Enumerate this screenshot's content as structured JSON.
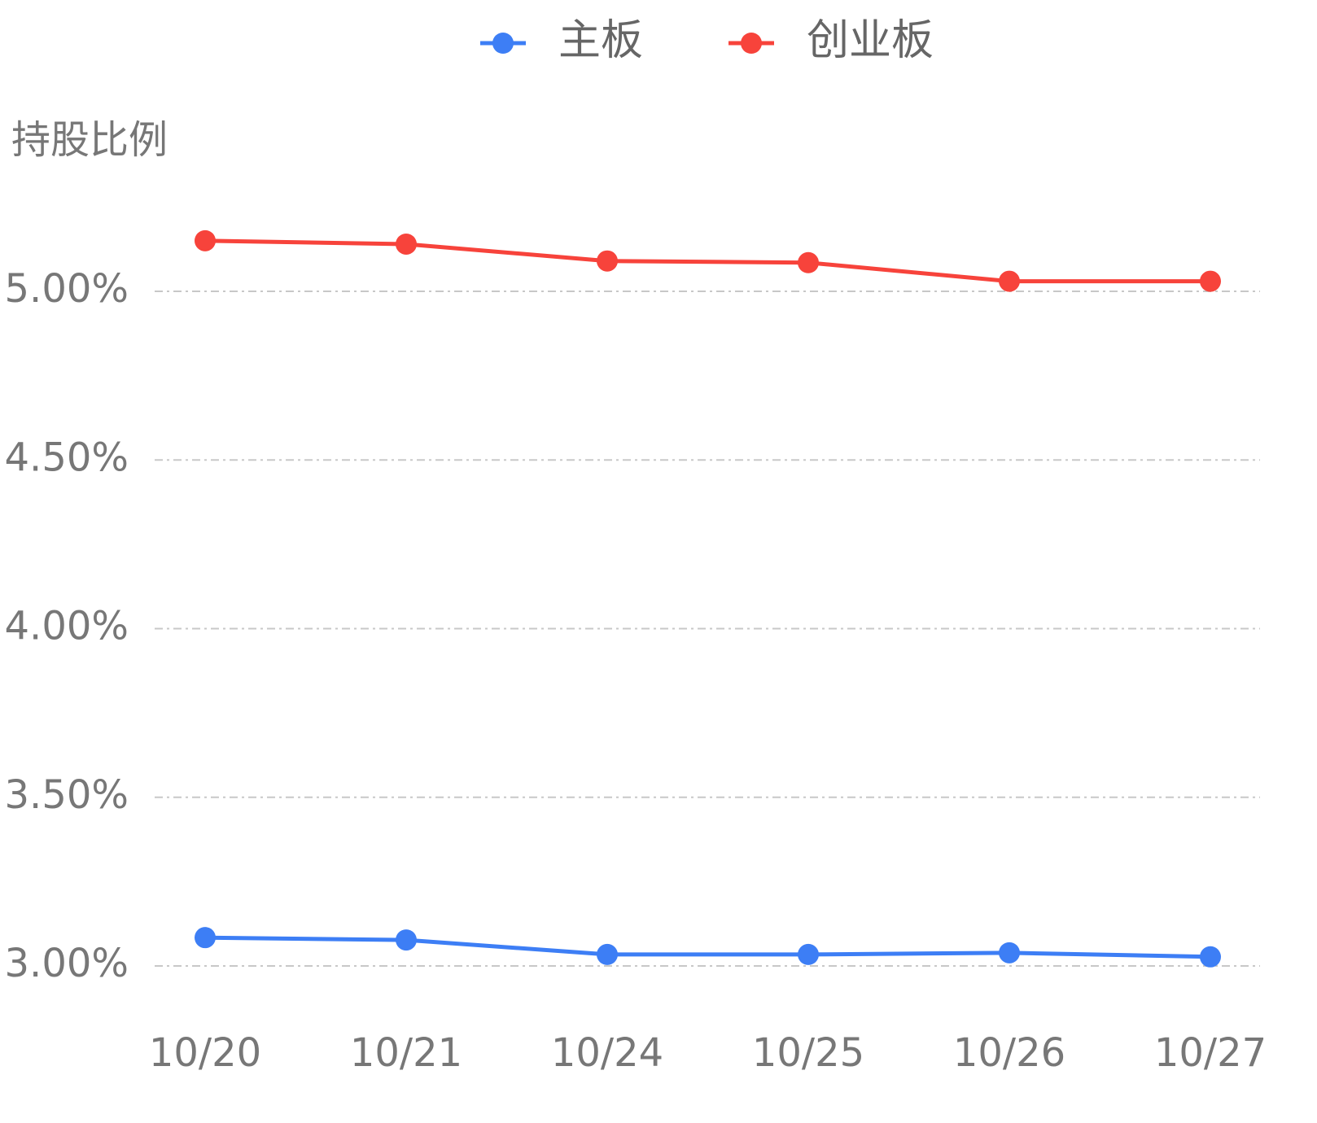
{
  "chart_data": {
    "type": "line",
    "y_label": "持股比例",
    "categories": [
      "10/20",
      "10/21",
      "10/24",
      "10/25",
      "10/26",
      "10/27"
    ],
    "series": [
      {
        "name": "主板",
        "color": "#3d7ef5",
        "values": [
          3.084,
          3.077,
          3.034,
          3.034,
          3.039,
          3.027
        ]
      },
      {
        "name": "创业板",
        "color": "#f7433b",
        "values": [
          5.15,
          5.14,
          5.09,
          5.085,
          5.03,
          5.03
        ]
      }
    ],
    "ylim": [
      3.0,
      5.25
    ],
    "yticks": [
      {
        "value": 3.0,
        "label": "3.00%"
      },
      {
        "value": 3.5,
        "label": "3.50%"
      },
      {
        "value": 4.0,
        "label": "4.00%"
      },
      {
        "value": 4.5,
        "label": "4.50%"
      },
      {
        "value": 5.0,
        "label": "5.00%"
      }
    ],
    "grid": true,
    "legend": "top"
  }
}
